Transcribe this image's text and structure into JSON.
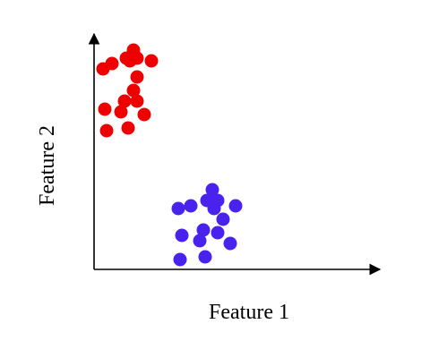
{
  "chart_data": {
    "type": "scatter",
    "title": "",
    "xlabel": "Feature 1",
    "ylabel": "Feature 2",
    "xlim": [
      0,
      10
    ],
    "ylim": [
      0,
      10
    ],
    "grid": false,
    "legend": "none",
    "ticks": false,
    "series": [
      {
        "color": "#ee0000",
        "points": [
          [
            -0.5,
            8.1
          ],
          [
            0.0,
            8.3
          ],
          [
            -0.4,
            6.6
          ],
          [
            -0.3,
            5.8
          ],
          [
            0.8,
            8.5
          ],
          [
            1.0,
            8.4
          ],
          [
            1.2,
            8.8
          ],
          [
            1.4,
            8.5
          ],
          [
            2.2,
            8.4
          ],
          [
            0.5,
            6.5
          ],
          [
            0.7,
            6.9
          ],
          [
            1.2,
            7.3
          ],
          [
            1.4,
            7.8
          ],
          [
            1.4,
            6.9
          ],
          [
            1.8,
            6.4
          ],
          [
            0.9,
            5.9
          ]
        ]
      },
      {
        "color": "#4a22ee",
        "points": [
          [
            3.7,
            2.9
          ],
          [
            4.4,
            3.0
          ],
          [
            5.3,
            3.2
          ],
          [
            5.6,
            3.6
          ],
          [
            5.9,
            3.2
          ],
          [
            6.9,
            3.0
          ],
          [
            5.7,
            2.9
          ],
          [
            6.2,
            2.5
          ],
          [
            3.9,
            1.9
          ],
          [
            5.1,
            2.1
          ],
          [
            5.9,
            2.0
          ],
          [
            4.9,
            1.7
          ],
          [
            6.6,
            1.6
          ],
          [
            3.8,
            1.0
          ],
          [
            5.2,
            1.1
          ]
        ]
      }
    ]
  }
}
